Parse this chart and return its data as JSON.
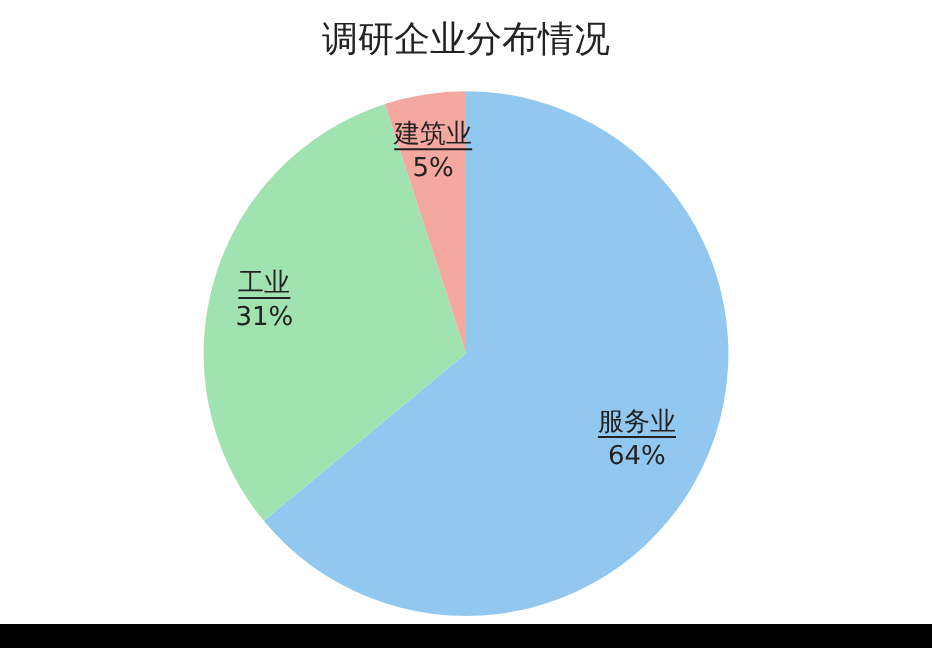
{
  "chart_data": {
    "type": "pie",
    "title": "调研企业分布情况",
    "categories": [
      "服务业",
      "工业",
      "建筑业"
    ],
    "values": [
      64,
      31,
      5
    ],
    "value_labels": [
      "64%",
      "31%",
      "5%"
    ],
    "colors": [
      "#92c8f0",
      "#a0e2b0",
      "#f5a8a0"
    ],
    "legend": false
  }
}
